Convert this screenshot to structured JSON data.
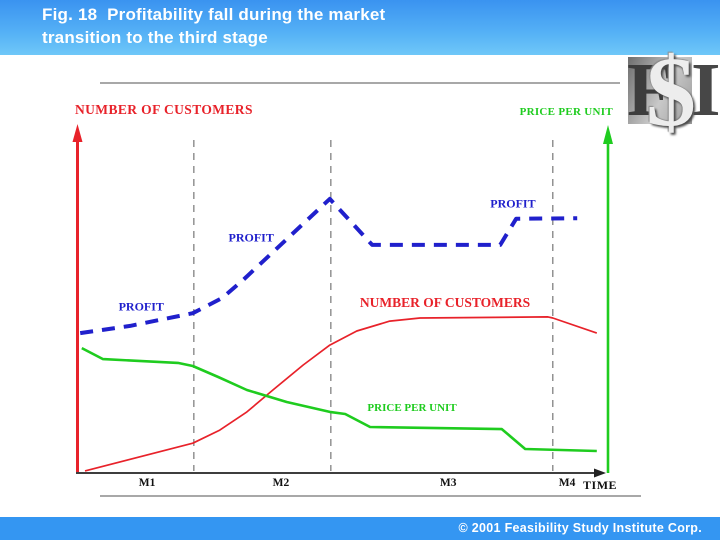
{
  "header": {
    "title_line1": "Fig. 18  Profitability fall during the market",
    "title_line2": "transition to the third stage"
  },
  "logo": {
    "letters": [
      "F",
      "$",
      "I"
    ]
  },
  "footer": {
    "copyright": "© 2001 Feasibility Study Institute Corp."
  },
  "chart_data": {
    "type": "line",
    "description": "Qualitative market-stage chart; units are percent of plot area (x: time 0-100, y: level 0-100)",
    "left_axis_label": "NUMBER OF CUSTOMERS",
    "right_axis_label": "PRICE PER UNIT",
    "time_axis_label": "TIME",
    "x_tick_labels": [
      {
        "label": "M1",
        "u": 13.2
      },
      {
        "label": "M2",
        "u": 38.4
      },
      {
        "label": "M3",
        "u": 69.9
      },
      {
        "label": "M4",
        "u": 92.3
      }
    ],
    "time_label_u": 98.5,
    "stage_dividers_u": [
      22.0,
      47.8,
      89.6
    ],
    "grid": "off",
    "legend": "inline-annotations",
    "series": [
      {
        "name": "PROFIT",
        "color": "#2020cc",
        "style": "dashed",
        "width": 4,
        "points": [
          [
            0.6,
            40.8
          ],
          [
            10.0,
            42.9
          ],
          [
            21.8,
            46.6
          ],
          [
            27.3,
            51.0
          ],
          [
            31.3,
            56.3
          ],
          [
            47.6,
            79.9
          ],
          [
            55.6,
            66.5
          ],
          [
            79.7,
            66.5
          ],
          [
            82.7,
            74.1
          ],
          [
            94.2,
            74.3
          ]
        ]
      },
      {
        "name": "NUMBER OF CUSTOMERS",
        "color": "#e8222a",
        "style": "solid",
        "width": 1.7,
        "points": [
          [
            1.5,
            0.6
          ],
          [
            21.8,
            8.7
          ],
          [
            26.9,
            12.5
          ],
          [
            32.0,
            17.8
          ],
          [
            36.9,
            24.2
          ],
          [
            42.6,
            31.5
          ],
          [
            47.6,
            37.3
          ],
          [
            52.7,
            41.4
          ],
          [
            58.9,
            44.3
          ],
          [
            64.6,
            45.2
          ],
          [
            88.7,
            45.5
          ],
          [
            89.6,
            45.2
          ],
          [
            97.9,
            40.8
          ]
        ]
      },
      {
        "name": "PRICE PER UNIT",
        "color": "#1fcc1f",
        "style": "solid",
        "width": 2.6,
        "points": [
          [
            0.9,
            36.4
          ],
          [
            4.9,
            33.2
          ],
          [
            19.0,
            32.1
          ],
          [
            21.8,
            31.2
          ],
          [
            26.6,
            28.0
          ],
          [
            32.0,
            24.2
          ],
          [
            39.5,
            20.7
          ],
          [
            47.6,
            17.8
          ],
          [
            50.5,
            17.2
          ],
          [
            55.2,
            13.4
          ],
          [
            80.0,
            12.8
          ],
          [
            84.4,
            7.0
          ],
          [
            97.9,
            6.4
          ]
        ]
      }
    ],
    "annotations": [
      {
        "text": "PROFIT",
        "color": "#2020cc",
        "u": 12.1,
        "v": 48.4,
        "size": 12
      },
      {
        "text": "PROFIT",
        "color": "#2020cc",
        "u": 32.8,
        "v": 68.5,
        "size": 12
      },
      {
        "text": "PROFIT",
        "color": "#2020cc",
        "u": 82.1,
        "v": 78.4,
        "size": 12
      },
      {
        "text": "NUMBER OF CUSTOMERS",
        "color": "#e8222a",
        "u": 69.3,
        "v": 49.6,
        "size": 13.5
      },
      {
        "text": "PRICE PER UNIT",
        "color": "#1fcc1f",
        "u": 63.1,
        "v": 19.0,
        "size": 11
      }
    ],
    "colors": {
      "left_axis": "#e8222a",
      "right_axis": "#1fcc1f",
      "time_axis": "#222222",
      "divider": "#8a8a8a"
    }
  }
}
